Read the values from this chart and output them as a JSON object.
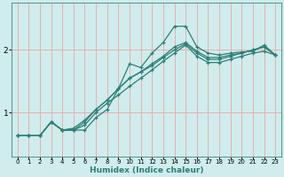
{
  "xlabel": "Humidex (Indice chaleur)",
  "ylabel": "",
  "background_color": "#d0ecec",
  "line_color": "#2d7f76",
  "grid_color": "#e8b0b0",
  "spine_color": "#5a9a94",
  "xlim": [
    -0.5,
    23.5
  ],
  "ylim": [
    0.3,
    2.75
  ],
  "yticks": [
    1,
    2
  ],
  "xticks": [
    0,
    1,
    2,
    3,
    4,
    5,
    6,
    7,
    8,
    9,
    10,
    11,
    12,
    13,
    14,
    15,
    16,
    17,
    18,
    19,
    20,
    21,
    22,
    23
  ],
  "lines": [
    {
      "x": [
        0,
        1,
        2,
        3,
        4,
        5,
        6,
        7,
        8,
        9,
        10,
        11,
        12,
        13,
        14,
        15,
        16,
        17,
        18,
        19,
        20,
        21,
        22,
        23
      ],
      "y": [
        0.63,
        0.63,
        0.63,
        0.85,
        0.72,
        0.72,
        0.72,
        0.92,
        1.05,
        1.38,
        1.78,
        1.72,
        1.95,
        2.12,
        2.38,
        2.38,
        2.05,
        1.95,
        1.92,
        1.95,
        1.97,
        1.98,
        2.08,
        1.92
      ]
    },
    {
      "x": [
        0,
        1,
        2,
        3,
        4,
        5,
        6,
        7,
        8,
        9,
        10,
        11,
        12,
        13,
        14,
        15,
        16,
        17,
        18,
        19,
        20,
        21,
        22,
        23
      ],
      "y": [
        0.63,
        0.63,
        0.63,
        0.85,
        0.72,
        0.72,
        0.8,
        1.0,
        1.15,
        1.28,
        1.42,
        1.55,
        1.68,
        1.82,
        1.95,
        2.08,
        1.9,
        1.8,
        1.8,
        1.85,
        1.9,
        1.95,
        1.98,
        1.92
      ]
    },
    {
      "x": [
        0,
        1,
        2,
        3,
        4,
        5,
        6,
        7,
        8,
        9,
        10,
        11,
        12,
        13,
        14,
        15,
        16,
        17,
        18,
        19,
        20,
        21,
        22,
        23
      ],
      "y": [
        0.63,
        0.63,
        0.63,
        0.85,
        0.72,
        0.75,
        0.88,
        1.05,
        1.2,
        1.38,
        1.55,
        1.65,
        1.75,
        1.88,
        2.0,
        2.1,
        1.95,
        1.85,
        1.85,
        1.9,
        1.95,
        2.0,
        2.05,
        1.92
      ]
    },
    {
      "x": [
        0,
        1,
        2,
        3,
        4,
        5,
        6,
        7,
        8,
        9,
        10,
        11,
        12,
        13,
        14,
        15,
        16,
        17,
        18,
        19,
        20,
        21,
        22,
        23
      ],
      "y": [
        0.63,
        0.63,
        0.63,
        0.85,
        0.72,
        0.72,
        0.85,
        1.05,
        1.2,
        1.38,
        1.55,
        1.65,
        1.78,
        1.9,
        2.05,
        2.12,
        1.98,
        1.88,
        1.88,
        1.92,
        1.95,
        2.0,
        2.05,
        1.92
      ]
    }
  ]
}
